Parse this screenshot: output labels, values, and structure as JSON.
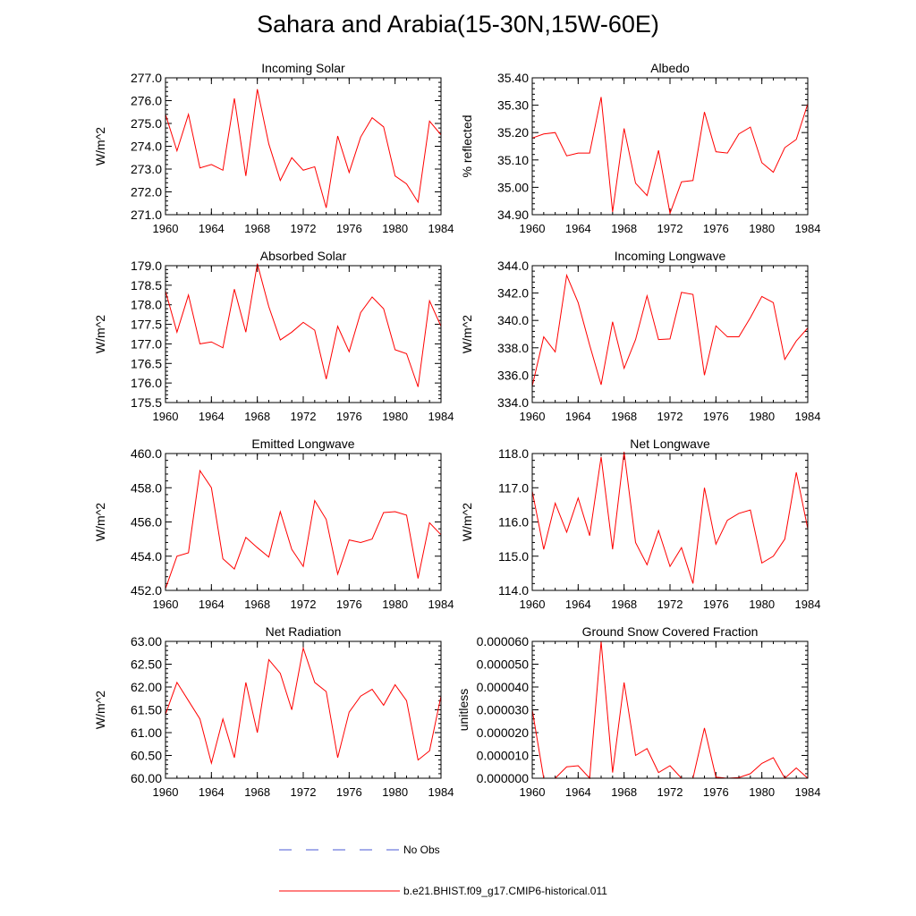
{
  "title": "Sahara and Arabia(15-30N,15W-60E)",
  "colors": {
    "model_line": "#ff0000",
    "obs_line": "#4a5ad6",
    "axis": "#000000"
  },
  "legend": {
    "items": [
      {
        "label": "No Obs",
        "style": "dashed",
        "color": "#4a5ad6"
      },
      {
        "label": "b.e21.BHIST.f09_g17.CMIP6-historical.011",
        "style": "solid",
        "color": "#ff0000"
      }
    ]
  },
  "chart_data": [
    {
      "type": "line",
      "title": "Incoming Solar",
      "ylabel": "W/m^2",
      "xlim": [
        1960,
        1984
      ],
      "ylim": [
        271.0,
        277.0
      ],
      "xticks": [
        1960,
        1964,
        1968,
        1972,
        1976,
        1980,
        1984
      ],
      "yticks": [
        271.0,
        272.0,
        273.0,
        274.0,
        275.0,
        276.0,
        277.0
      ],
      "ytick_labels": [
        "271.0",
        "272.0",
        "273.0",
        "274.0",
        "275.0",
        "276.0",
        "277.0"
      ],
      "x": [
        1960,
        1961,
        1962,
        1963,
        1964,
        1965,
        1966,
        1967,
        1968,
        1969,
        1970,
        1971,
        1972,
        1973,
        1974,
        1975,
        1976,
        1977,
        1978,
        1979,
        1980,
        1981,
        1982,
        1983,
        1984
      ],
      "series": [
        {
          "values": [
            275.4,
            273.8,
            275.4,
            273.05,
            273.2,
            272.95,
            276.1,
            272.7,
            276.5,
            274.1,
            272.5,
            273.5,
            272.95,
            273.1,
            271.3,
            274.45,
            272.85,
            274.4,
            275.25,
            274.85,
            272.7,
            272.35,
            271.55,
            275.1,
            274.5
          ]
        }
      ]
    },
    {
      "type": "line",
      "title": "Albedo",
      "ylabel": "% reflected",
      "xlim": [
        1960,
        1984
      ],
      "ylim": [
        34.9,
        35.4
      ],
      "xticks": [
        1960,
        1964,
        1968,
        1972,
        1976,
        1980,
        1984
      ],
      "yticks": [
        34.9,
        35.0,
        35.1,
        35.2,
        35.3,
        35.4
      ],
      "ytick_labels": [
        "34.90",
        "35.00",
        "35.10",
        "35.20",
        "35.30",
        "35.40"
      ],
      "x": [
        1960,
        1961,
        1962,
        1963,
        1964,
        1965,
        1966,
        1967,
        1968,
        1969,
        1970,
        1971,
        1972,
        1973,
        1974,
        1975,
        1976,
        1977,
        1978,
        1979,
        1980,
        1981,
        1982,
        1983,
        1984
      ],
      "series": [
        {
          "values": [
            35.18,
            35.195,
            35.2,
            35.115,
            35.125,
            35.125,
            35.33,
            34.91,
            35.215,
            35.015,
            34.97,
            35.135,
            34.905,
            35.02,
            35.025,
            35.275,
            35.13,
            35.125,
            35.195,
            35.22,
            35.09,
            35.055,
            35.145,
            35.175,
            35.305
          ]
        }
      ]
    },
    {
      "type": "line",
      "title": "Absorbed Solar",
      "ylabel": "W/m^2",
      "xlim": [
        1960,
        1984
      ],
      "ylim": [
        175.5,
        179.0
      ],
      "xticks": [
        1960,
        1964,
        1968,
        1972,
        1976,
        1980,
        1984
      ],
      "yticks": [
        175.5,
        176.0,
        176.5,
        177.0,
        177.5,
        178.0,
        178.5,
        179.0
      ],
      "ytick_labels": [
        "175.5",
        "176.0",
        "176.5",
        "177.0",
        "177.5",
        "178.0",
        "178.5",
        "179.0"
      ],
      "x": [
        1960,
        1961,
        1962,
        1963,
        1964,
        1965,
        1966,
        1967,
        1968,
        1969,
        1970,
        1971,
        1972,
        1973,
        1974,
        1975,
        1976,
        1977,
        1978,
        1979,
        1980,
        1981,
        1982,
        1983,
        1984
      ],
      "series": [
        {
          "values": [
            178.35,
            177.3,
            178.25,
            177.0,
            177.05,
            176.9,
            178.4,
            177.3,
            179.05,
            177.95,
            177.1,
            177.3,
            177.55,
            177.35,
            176.1,
            177.45,
            176.8,
            177.8,
            178.2,
            177.9,
            176.85,
            176.75,
            175.9,
            178.1,
            177.45
          ]
        }
      ]
    },
    {
      "type": "line",
      "title": "Incoming Longwave",
      "ylabel": "W/m^2",
      "xlim": [
        1960,
        1984
      ],
      "ylim": [
        334.0,
        344.0
      ],
      "xticks": [
        1960,
        1964,
        1968,
        1972,
        1976,
        1980,
        1984
      ],
      "yticks": [
        334.0,
        336.0,
        338.0,
        340.0,
        342.0,
        344.0
      ],
      "ytick_labels": [
        "334.0",
        "336.0",
        "338.0",
        "340.0",
        "342.0",
        "344.0"
      ],
      "x": [
        1960,
        1961,
        1962,
        1963,
        1964,
        1965,
        1966,
        1967,
        1968,
        1969,
        1970,
        1971,
        1972,
        1973,
        1974,
        1975,
        1976,
        1977,
        1978,
        1979,
        1980,
        1981,
        1982,
        1983,
        1984
      ],
      "series": [
        {
          "values": [
            335.2,
            338.8,
            337.7,
            343.3,
            341.3,
            338.2,
            335.3,
            339.9,
            336.5,
            338.6,
            341.8,
            338.6,
            338.65,
            342.05,
            341.9,
            336.0,
            339.6,
            338.8,
            338.8,
            340.2,
            341.75,
            341.3,
            337.15,
            338.5,
            339.45
          ]
        }
      ]
    },
    {
      "type": "line",
      "title": "Emitted Longwave",
      "ylabel": "W/m^2",
      "xlim": [
        1960,
        1984
      ],
      "ylim": [
        452.0,
        460.0
      ],
      "xticks": [
        1960,
        1964,
        1968,
        1972,
        1976,
        1980,
        1984
      ],
      "yticks": [
        452.0,
        454.0,
        456.0,
        458.0,
        460.0
      ],
      "ytick_labels": [
        "452.0",
        "454.0",
        "456.0",
        "458.0",
        "460.0"
      ],
      "x": [
        1960,
        1961,
        1962,
        1963,
        1964,
        1965,
        1966,
        1967,
        1968,
        1969,
        1970,
        1971,
        1972,
        1973,
        1974,
        1975,
        1976,
        1977,
        1978,
        1979,
        1980,
        1981,
        1982,
        1983,
        1984
      ],
      "series": [
        {
          "values": [
            452.1,
            454.0,
            454.2,
            459.0,
            458.0,
            453.85,
            453.25,
            455.1,
            454.5,
            453.95,
            456.6,
            454.4,
            453.4,
            457.25,
            456.15,
            452.95,
            454.95,
            454.8,
            455.0,
            456.55,
            456.6,
            456.4,
            452.7,
            455.95,
            455.25
          ]
        }
      ]
    },
    {
      "type": "line",
      "title": "Net Longwave",
      "ylabel": "W/m^2",
      "xlim": [
        1960,
        1984
      ],
      "ylim": [
        114.0,
        118.0
      ],
      "xticks": [
        1960,
        1964,
        1968,
        1972,
        1976,
        1980,
        1984
      ],
      "yticks": [
        114.0,
        115.0,
        116.0,
        117.0,
        118.0
      ],
      "ytick_labels": [
        "114.0",
        "115.0",
        "116.0",
        "117.0",
        "118.0"
      ],
      "x": [
        1960,
        1961,
        1962,
        1963,
        1964,
        1965,
        1966,
        1967,
        1968,
        1969,
        1970,
        1971,
        1972,
        1973,
        1974,
        1975,
        1976,
        1977,
        1978,
        1979,
        1980,
        1981,
        1982,
        1983,
        1984
      ],
      "series": [
        {
          "values": [
            116.9,
            115.2,
            116.55,
            115.7,
            116.7,
            115.6,
            117.9,
            115.2,
            118.05,
            115.4,
            114.75,
            115.75,
            114.7,
            115.25,
            114.2,
            117.0,
            115.35,
            116.05,
            116.25,
            116.35,
            114.8,
            115.0,
            115.5,
            117.45,
            115.8
          ]
        }
      ]
    },
    {
      "type": "line",
      "title": "Net Radiation",
      "ylabel": "W/m^2",
      "xlim": [
        1960,
        1984
      ],
      "ylim": [
        60.0,
        63.0
      ],
      "xticks": [
        1960,
        1964,
        1968,
        1972,
        1976,
        1980,
        1984
      ],
      "yticks": [
        60.0,
        60.5,
        61.0,
        61.5,
        62.0,
        62.5,
        63.0
      ],
      "ytick_labels": [
        "60.00",
        "60.50",
        "61.00",
        "61.50",
        "62.00",
        "62.50",
        "63.00"
      ],
      "x": [
        1960,
        1961,
        1962,
        1963,
        1964,
        1965,
        1966,
        1967,
        1968,
        1969,
        1970,
        1971,
        1972,
        1973,
        1974,
        1975,
        1976,
        1977,
        1978,
        1979,
        1980,
        1981,
        1982,
        1983,
        1984
      ],
      "series": [
        {
          "values": [
            61.4,
            62.1,
            61.7,
            61.3,
            60.33,
            61.3,
            60.45,
            62.1,
            61.0,
            62.6,
            62.3,
            61.5,
            62.85,
            62.1,
            61.9,
            60.45,
            61.45,
            61.8,
            61.95,
            61.6,
            62.05,
            61.7,
            60.4,
            60.6,
            61.8
          ]
        }
      ]
    },
    {
      "type": "line",
      "title": "Ground Snow Covered Fraction",
      "ylabel": "unitless",
      "xlim": [
        1960,
        1984
      ],
      "ylim": [
        0.0,
        6e-05
      ],
      "xticks": [
        1960,
        1964,
        1968,
        1972,
        1976,
        1980,
        1984
      ],
      "yticks": [
        0.0,
        1e-05,
        2e-05,
        3e-05,
        4e-05,
        5e-05,
        6e-05
      ],
      "ytick_labels": [
        "0.000000",
        "0.000010",
        "0.000020",
        "0.000030",
        "0.000040",
        "0.000050",
        "0.000060"
      ],
      "x": [
        1960,
        1961,
        1962,
        1963,
        1964,
        1965,
        1966,
        1967,
        1968,
        1969,
        1970,
        1971,
        1972,
        1973,
        1974,
        1975,
        1976,
        1977,
        1978,
        1979,
        1980,
        1981,
        1982,
        1983,
        1984
      ],
      "series": [
        {
          "values": [
            3e-05,
            0.0,
            0.0,
            5e-06,
            5.5e-06,
            0.0,
            6e-05,
            2.5e-06,
            4.2e-05,
            1e-05,
            1.3e-05,
            2.5e-06,
            5.5e-06,
            0.0,
            0.0,
            2.2e-05,
            5e-07,
            0.0,
            3e-07,
            2e-06,
            6.5e-06,
            9e-06,
            0.0,
            4.5e-06,
            0.0
          ]
        }
      ]
    }
  ]
}
